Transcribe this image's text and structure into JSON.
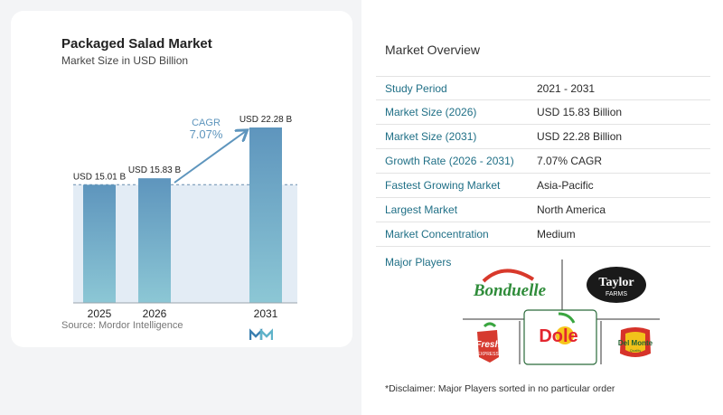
{
  "chart": {
    "title": "Packaged Salad Market",
    "subtitle": "Market Size in USD Billion",
    "source": "Source:  Mordor Intelligence",
    "cagr_label": "CAGR",
    "cagr_value": "7.07%"
  },
  "chart_data": {
    "type": "bar",
    "title": "Packaged Salad Market",
    "subtitle": "Market Size in USD Billion",
    "categories": [
      "2025",
      "2026",
      "2031"
    ],
    "values": [
      15.01,
      15.83,
      22.28
    ],
    "data_labels": [
      "USD 15.01 B",
      "USD 15.83 B",
      "USD 22.28 B"
    ],
    "ylim": [
      0,
      22.28
    ],
    "grid": false,
    "annotation": "CAGR 7.07%"
  },
  "overview": {
    "title": "Market Overview",
    "rows": [
      {
        "label": "Study Period",
        "value": "2021 - 2031"
      },
      {
        "label": "Market Size (2026)",
        "value": "USD 15.83 Billion"
      },
      {
        "label": "Market Size (2031)",
        "value": "USD 22.28 Billion"
      },
      {
        "label": "Growth Rate (2026 - 2031)",
        "value": "7.07% CAGR"
      },
      {
        "label": "Fastest Growing Market",
        "value": "Asia-Pacific"
      },
      {
        "label": "Largest Market",
        "value": "North America"
      },
      {
        "label": "Market Concentration",
        "value": "Medium"
      }
    ]
  },
  "players": {
    "title": "Major Players",
    "logos": [
      "Bonduelle",
      "Taylor FARMS",
      "Fresh EXPRESS",
      "Dole",
      "Del Monte"
    ]
  },
  "disclaimer": "*Disclaimer: Major Players sorted in no particular order",
  "colors": {
    "bar_top": "#5e95bd",
    "bar_bottom": "#8cc7d5",
    "band": "#e3ecf5",
    "accent": "#1f6f86"
  }
}
